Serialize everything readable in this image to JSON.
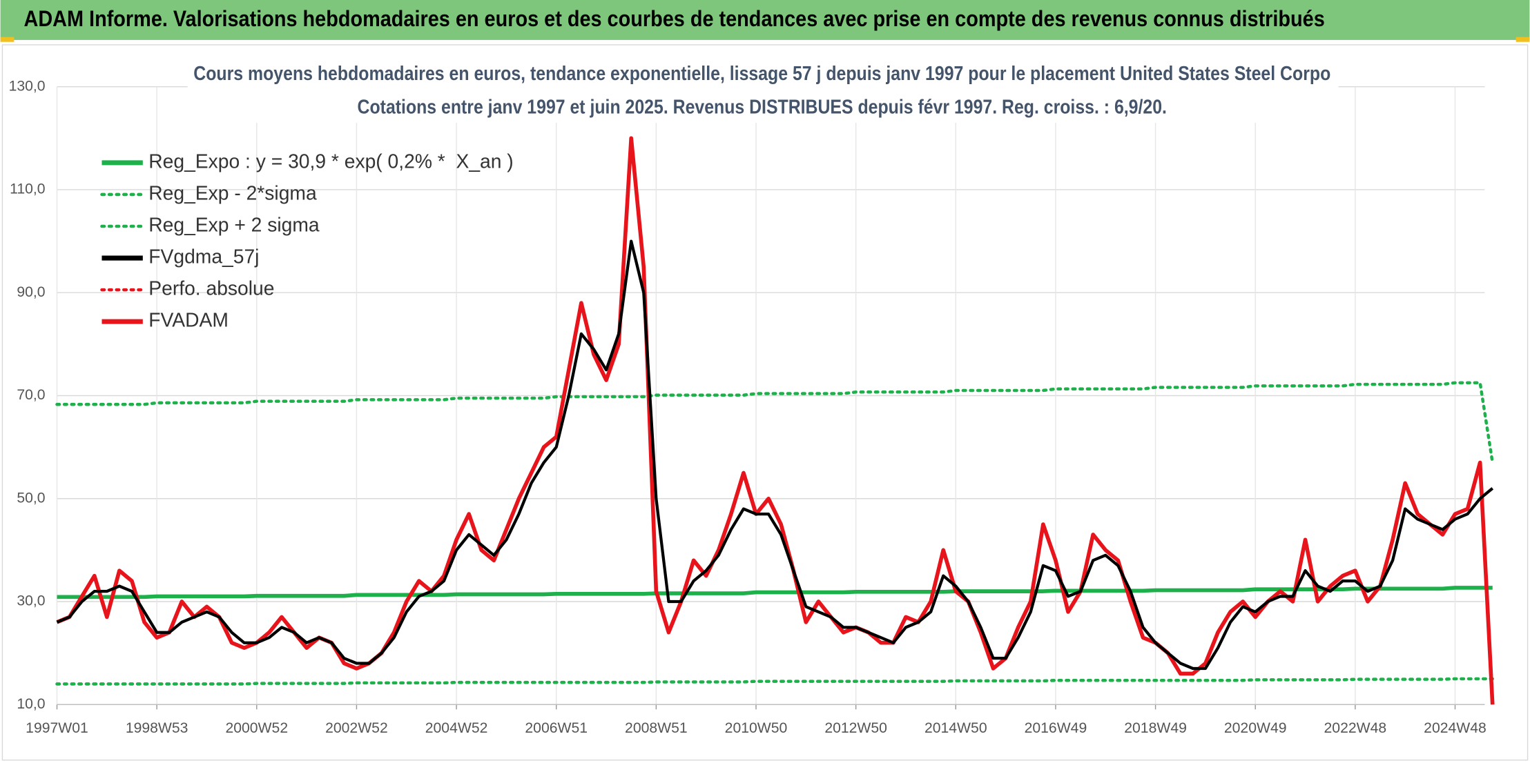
{
  "header": {
    "title": "ADAM Informe. Valorisations hebdomadaires en euros et des courbes de tendances avec prise en compte des revenus connus distribués"
  },
  "chart_data": {
    "type": "line",
    "title": "Cours moyens hebdomadaires en euros, tendance exponentielle, lissage 57 j depuis janv 1997 pour le placement United States Steel Corpo",
    "subtitle": "Cotations entre janv 1997 et juin 2025. Revenus DISTRIBUES depuis févr 1997. Reg. croiss. : 6,9/20.",
    "categories": [
      "1997W01",
      null,
      null,
      null,
      null,
      null,
      null,
      null,
      "1998W53",
      null,
      null,
      null,
      null,
      null,
      null,
      null,
      "2000W52",
      null,
      null,
      null,
      null,
      null,
      null,
      null,
      "2002W52",
      null,
      null,
      null,
      null,
      null,
      null,
      null,
      "2004W52",
      null,
      null,
      null,
      null,
      null,
      null,
      null,
      "2006W51",
      null,
      null,
      null,
      null,
      null,
      null,
      null,
      "2008W51",
      null,
      null,
      null,
      null,
      null,
      null,
      null,
      "2010W50",
      null,
      null,
      null,
      null,
      null,
      null,
      null,
      "2012W50",
      null,
      null,
      null,
      null,
      null,
      null,
      null,
      "2014W50",
      null,
      null,
      null,
      null,
      null,
      null,
      null,
      "2016W49",
      null,
      null,
      null,
      null,
      null,
      null,
      null,
      "2018W49",
      null,
      null,
      null,
      null,
      null,
      null,
      null,
      "2020W49",
      null,
      null,
      null,
      null,
      null,
      null,
      null,
      "2022W48",
      null,
      null,
      null,
      null,
      null,
      null,
      null,
      "2024W48",
      null,
      null,
      null
    ],
    "ylim": [
      10,
      130
    ],
    "yticks": [
      {
        "value": 10,
        "label": "10,0"
      },
      {
        "value": 30,
        "label": "30,0"
      },
      {
        "value": 50,
        "label": "50,0"
      },
      {
        "value": 70,
        "label": "70,0"
      },
      {
        "value": 90,
        "label": "90,0"
      },
      {
        "value": 110,
        "label": "110,0"
      },
      {
        "value": 130,
        "label": "130,0"
      }
    ],
    "grid": true,
    "legend": "upper left",
    "series": [
      {
        "name": "Reg_Expo : y = 30,9 * exp( 0,2% *  X_an )",
        "color": "#1db04b",
        "style": "solid",
        "values": [
          30.9,
          30.9,
          30.9,
          30.9,
          30.9,
          30.9,
          30.9,
          30.9,
          31.0,
          31.0,
          31.0,
          31.0,
          31.0,
          31.0,
          31.0,
          31.0,
          31.1,
          31.1,
          31.1,
          31.1,
          31.1,
          31.1,
          31.1,
          31.1,
          31.3,
          31.3,
          31.3,
          31.3,
          31.3,
          31.3,
          31.3,
          31.3,
          31.4,
          31.4,
          31.4,
          31.4,
          31.4,
          31.4,
          31.4,
          31.4,
          31.5,
          31.5,
          31.5,
          31.5,
          31.5,
          31.5,
          31.5,
          31.5,
          31.6,
          31.6,
          31.6,
          31.6,
          31.6,
          31.6,
          31.6,
          31.6,
          31.8,
          31.8,
          31.8,
          31.8,
          31.8,
          31.8,
          31.8,
          31.8,
          31.9,
          31.9,
          31.9,
          31.9,
          31.9,
          31.9,
          31.9,
          31.9,
          32.0,
          32.0,
          32.0,
          32.0,
          32.0,
          32.0,
          32.0,
          32.0,
          32.1,
          32.1,
          32.1,
          32.1,
          32.1,
          32.1,
          32.1,
          32.1,
          32.2,
          32.2,
          32.2,
          32.2,
          32.2,
          32.2,
          32.2,
          32.2,
          32.4,
          32.4,
          32.4,
          32.4,
          32.4,
          32.4,
          32.4,
          32.4,
          32.5,
          32.5,
          32.5,
          32.5,
          32.5,
          32.5,
          32.5,
          32.5,
          32.7,
          32.7,
          32.7,
          32.7
        ]
      },
      {
        "name": "Reg_Exp - 2*sigma",
        "color": "#1db04b",
        "style": "dotted",
        "values": [
          14.0,
          14.0,
          14.0,
          14.0,
          14.0,
          14.0,
          14.0,
          14.0,
          14.0,
          14.0,
          14.0,
          14.0,
          14.0,
          14.0,
          14.0,
          14.0,
          14.1,
          14.1,
          14.1,
          14.1,
          14.1,
          14.1,
          14.1,
          14.1,
          14.2,
          14.2,
          14.2,
          14.2,
          14.2,
          14.2,
          14.2,
          14.2,
          14.3,
          14.3,
          14.3,
          14.3,
          14.3,
          14.3,
          14.3,
          14.3,
          14.3,
          14.3,
          14.3,
          14.3,
          14.3,
          14.3,
          14.3,
          14.3,
          14.4,
          14.4,
          14.4,
          14.4,
          14.4,
          14.4,
          14.4,
          14.4,
          14.5,
          14.5,
          14.5,
          14.5,
          14.5,
          14.5,
          14.5,
          14.5,
          14.5,
          14.5,
          14.5,
          14.5,
          14.5,
          14.5,
          14.5,
          14.5,
          14.6,
          14.6,
          14.6,
          14.6,
          14.6,
          14.6,
          14.6,
          14.6,
          14.7,
          14.7,
          14.7,
          14.7,
          14.7,
          14.7,
          14.7,
          14.7,
          14.7,
          14.7,
          14.7,
          14.7,
          14.7,
          14.7,
          14.7,
          14.7,
          14.8,
          14.8,
          14.8,
          14.8,
          14.8,
          14.8,
          14.8,
          14.8,
          14.9,
          14.9,
          14.9,
          14.9,
          14.9,
          14.9,
          14.9,
          14.9,
          15.0,
          15.0,
          15.0,
          15.0
        ]
      },
      {
        "name": "Reg_Exp + 2 sigma",
        "color": "#1db04b",
        "style": "dotted",
        "values": [
          68.3,
          68.3,
          68.3,
          68.3,
          68.3,
          68.3,
          68.3,
          68.3,
          68.6,
          68.6,
          68.6,
          68.6,
          68.6,
          68.6,
          68.6,
          68.6,
          68.9,
          68.9,
          68.9,
          68.9,
          68.9,
          68.9,
          68.9,
          68.9,
          69.2,
          69.2,
          69.2,
          69.2,
          69.2,
          69.2,
          69.2,
          69.2,
          69.5,
          69.5,
          69.5,
          69.5,
          69.5,
          69.5,
          69.5,
          69.5,
          69.8,
          69.8,
          69.8,
          69.8,
          69.8,
          69.8,
          69.8,
          69.8,
          70.1,
          70.1,
          70.1,
          70.1,
          70.1,
          70.1,
          70.1,
          70.1,
          70.4,
          70.4,
          70.4,
          70.4,
          70.4,
          70.4,
          70.4,
          70.4,
          70.7,
          70.7,
          70.7,
          70.7,
          70.7,
          70.7,
          70.7,
          70.7,
          71.0,
          71.0,
          71.0,
          71.0,
          71.0,
          71.0,
          71.0,
          71.0,
          71.3,
          71.3,
          71.3,
          71.3,
          71.3,
          71.3,
          71.3,
          71.3,
          71.6,
          71.6,
          71.6,
          71.6,
          71.6,
          71.6,
          71.6,
          71.6,
          71.9,
          71.9,
          71.9,
          71.9,
          71.9,
          71.9,
          71.9,
          71.9,
          72.2,
          72.2,
          72.2,
          72.2,
          72.2,
          72.2,
          72.2,
          72.2,
          72.5,
          72.5,
          72.5,
          57
        ]
      },
      {
        "name": "FVgdma_57j",
        "color": "#000000",
        "style": "solid",
        "values": [
          26,
          27,
          30,
          32,
          32,
          33,
          32,
          28,
          24,
          24,
          26,
          27,
          28,
          27,
          24,
          22,
          22,
          23,
          25,
          24,
          22,
          23,
          22,
          19,
          18,
          18,
          20,
          23,
          28,
          31,
          32,
          34,
          40,
          43,
          41,
          39,
          42,
          47,
          53,
          57,
          60,
          70,
          82,
          79,
          75,
          82,
          100,
          90,
          50,
          30,
          30,
          34,
          36,
          39,
          44,
          48,
          47,
          47,
          43,
          36,
          29,
          28,
          27,
          25,
          25,
          24,
          23,
          22,
          25,
          26,
          28,
          35,
          33,
          30,
          25,
          19,
          19,
          23,
          28,
          37,
          36,
          31,
          32,
          38,
          39,
          37,
          32,
          25,
          22,
          20,
          18,
          17,
          17,
          21,
          26,
          29,
          28,
          30,
          31,
          31,
          36,
          33,
          32,
          34,
          34,
          32,
          33,
          38,
          48,
          46,
          45,
          44,
          46,
          47,
          50,
          52
        ]
      },
      {
        "name": "Perfo. absolue",
        "color": "#e8141b",
        "style": "dotted"
      },
      {
        "name": "FVADAM",
        "color": "#e8141b",
        "style": "solid",
        "values": [
          26,
          27,
          31,
          35,
          27,
          36,
          34,
          26,
          23,
          24,
          30,
          27,
          29,
          27,
          22,
          21,
          22,
          24,
          27,
          24,
          21,
          23,
          22,
          18,
          17,
          18,
          20,
          24,
          30,
          34,
          32,
          35,
          42,
          47,
          40,
          38,
          44,
          50,
          55,
          60,
          62,
          75,
          88,
          78,
          73,
          80,
          120,
          95,
          32,
          24,
          30,
          38,
          35,
          40,
          47,
          55,
          47,
          50,
          45,
          36,
          26,
          30,
          27,
          24,
          25,
          24,
          22,
          22,
          27,
          26,
          30,
          40,
          32,
          30,
          24,
          17,
          19,
          25,
          30,
          45,
          38,
          28,
          32,
          43,
          40,
          38,
          30,
          23,
          22,
          20,
          16,
          16,
          18,
          24,
          28,
          30,
          27,
          30,
          32,
          30,
          42,
          30,
          33,
          35,
          36,
          30,
          33,
          42,
          53,
          47,
          45,
          43,
          47,
          48,
          57,
          10
        ]
      }
    ]
  }
}
